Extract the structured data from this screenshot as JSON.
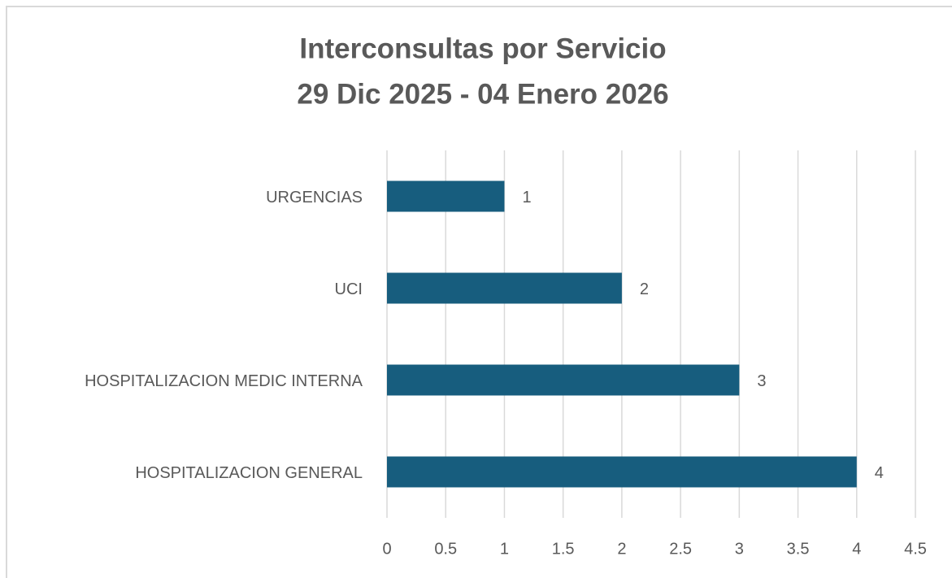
{
  "chart_data": {
    "type": "hbar",
    "title": "Interconsultas por Servicio",
    "subtitle": "29 Dic 2025 - 04 Enero 2026",
    "categories": [
      "URGENCIAS",
      "UCI",
      "HOSPITALIZACION MEDIC INTERNA",
      "HOSPITALIZACION GENERAL"
    ],
    "values": [
      1,
      2,
      3,
      4
    ],
    "color": "#175d7e",
    "xlim": [
      0,
      4.5
    ],
    "xticks": [
      0,
      0.5,
      1,
      1.5,
      2,
      2.5,
      3,
      3.5,
      4,
      4.5
    ],
    "grid": true
  }
}
